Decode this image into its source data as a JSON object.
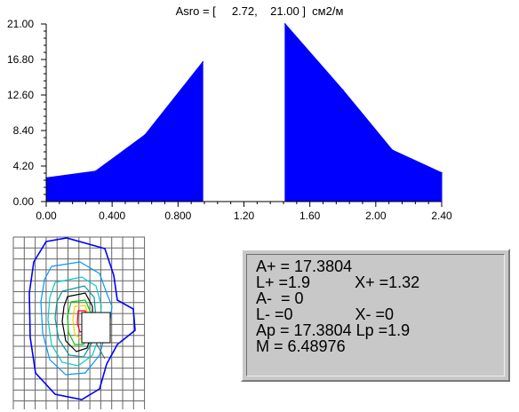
{
  "chart_data": {
    "type": "area",
    "title": "Asro = [     2.72,    21.00 ]  см2/м",
    "x_ticks": [
      "0.00",
      "0.400",
      "0.800",
      "1.20",
      "1.60",
      "2.00",
      "2.40"
    ],
    "y_ticks": [
      "0.00",
      "4.20",
      "8.40",
      "12.60",
      "16.80",
      "21.00"
    ],
    "xlim": [
      0,
      2.4
    ],
    "ylim": [
      0,
      21.0
    ],
    "series": [
      {
        "x": [
          0.0,
          0.3,
          0.6,
          0.95
        ],
        "y": [
          2.8,
          3.6,
          7.9,
          16.5
        ]
      },
      {
        "x": [
          1.45,
          1.8,
          2.1,
          2.4
        ],
        "y": [
          21.0,
          13.2,
          6.1,
          3.4
        ]
      }
    ],
    "fill_color": "#0000ff"
  },
  "info": {
    "lines": [
      "A+ = 17.3804",
      "L+ =1.9          X+ =1.32",
      "A-  = 0",
      "L- =0              X- =0",
      "Ap = 17.3804 Lp =1.9",
      "M = 6.48976"
    ]
  },
  "map": {
    "contour_colors": [
      "#0000ff",
      "#0099ff",
      "#00cccc",
      "#009999",
      "#000000",
      "#00cc00",
      "#ffcc00",
      "#ff0000"
    ]
  }
}
